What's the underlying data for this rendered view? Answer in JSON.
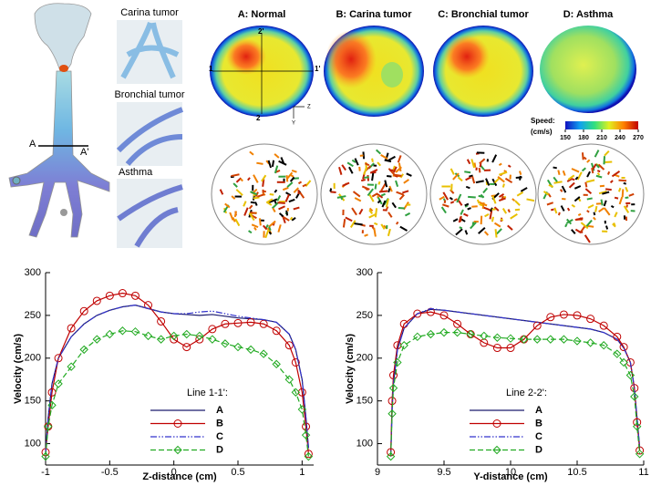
{
  "figure": {
    "panel_titles": [
      "A: Normal",
      "B: Carina tumor",
      "C: Bronchial tumor",
      "D: Asthma"
    ],
    "inset_labels": [
      "Carina tumor",
      "Bronchial tumor",
      "Asthma"
    ],
    "section_labels": [
      "A",
      "A'"
    ],
    "line_labels": [
      "1",
      "1'",
      "2",
      "2'"
    ],
    "axis_icon": [
      "Z",
      "Y"
    ],
    "colorbar": {
      "title": "Speed:",
      "unit": "(cm/s)",
      "lim": [
        150,
        270
      ],
      "ticks": [
        150,
        180,
        210,
        240,
        270
      ]
    }
  },
  "chart_data": [
    {
      "type": "line",
      "xlabel": "Z-distance (cm)",
      "ylabel": "Velocity (cm/s)",
      "legend_title": "Line 1-1':",
      "xlim": [
        -1,
        1.09
      ],
      "xticks": [
        -1,
        -0.5,
        0,
        0.5,
        1
      ],
      "ylim": [
        75,
        300
      ],
      "yticks": [
        100,
        150,
        200,
        250,
        300
      ],
      "x": [
        -1,
        -0.98,
        -0.95,
        -0.9,
        -0.8,
        -0.7,
        -0.6,
        -0.5,
        -0.4,
        -0.3,
        -0.2,
        -0.1,
        0,
        0.1,
        0.2,
        0.3,
        0.4,
        0.5,
        0.6,
        0.7,
        0.8,
        0.9,
        0.95,
        1.0,
        1.03,
        1.05
      ],
      "series": [
        {
          "name": "A",
          "color": "#1a1a6e",
          "line_style": "solid",
          "marker": "none",
          "values": [
            90,
            130,
            170,
            200,
            225,
            240,
            250,
            256,
            260,
            262,
            258,
            254,
            252,
            251,
            250,
            251,
            249,
            247,
            246,
            245,
            242,
            228,
            210,
            175,
            130,
            95
          ]
        },
        {
          "name": "B",
          "color": "#c00000",
          "line_style": "solid",
          "marker": "circle",
          "values": [
            90,
            120,
            160,
            200,
            235,
            255,
            267,
            273,
            276,
            273,
            262,
            243,
            222,
            213,
            222,
            234,
            240,
            241,
            242,
            240,
            232,
            215,
            195,
            160,
            120,
            88
          ]
        },
        {
          "name": "C",
          "color": "#3333cc",
          "line_style": "dashdotdot",
          "marker": "none",
          "values": [
            88,
            130,
            170,
            200,
            225,
            240,
            250,
            256,
            260,
            262,
            258,
            254,
            252,
            252,
            254,
            255,
            252,
            249,
            247,
            245,
            242,
            228,
            210,
            175,
            130,
            95
          ]
        },
        {
          "name": "D",
          "color": "#22aa22",
          "line_style": "dashed",
          "marker": "diamond",
          "values": [
            85,
            120,
            145,
            170,
            190,
            210,
            222,
            228,
            232,
            231,
            226,
            222,
            226,
            228,
            226,
            222,
            217,
            213,
            210,
            205,
            193,
            175,
            160,
            140,
            110,
            85
          ]
        }
      ]
    },
    {
      "type": "line",
      "xlabel": "Y-distance (cm)",
      "ylabel": "Velocity (cm/s)",
      "legend_title": "Line 2-2':",
      "xlim": [
        9,
        11
      ],
      "xticks": [
        9,
        9.5,
        10,
        10.5,
        11
      ],
      "ylim": [
        75,
        300
      ],
      "yticks": [
        100,
        150,
        200,
        250,
        300
      ],
      "x": [
        9.1,
        9.11,
        9.12,
        9.15,
        9.2,
        9.3,
        9.4,
        9.5,
        9.6,
        9.7,
        9.8,
        9.9,
        10.0,
        10.1,
        10.2,
        10.3,
        10.4,
        10.5,
        10.6,
        10.7,
        10.8,
        10.85,
        10.9,
        10.93,
        10.95,
        10.97
      ],
      "series": [
        {
          "name": "A",
          "color": "#1a1a6e",
          "line_style": "solid",
          "marker": "none",
          "values": [
            85,
            140,
            170,
            210,
            235,
            252,
            257,
            256,
            254,
            252,
            250,
            248,
            246,
            244,
            242,
            240,
            238,
            236,
            234,
            230,
            222,
            212,
            195,
            165,
            130,
            95
          ]
        },
        {
          "name": "B",
          "color": "#c00000",
          "line_style": "solid",
          "marker": "circle",
          "values": [
            90,
            150,
            180,
            215,
            240,
            252,
            254,
            250,
            240,
            228,
            218,
            212,
            212,
            222,
            238,
            248,
            251,
            250,
            246,
            238,
            225,
            213,
            195,
            165,
            125,
            92
          ]
        },
        {
          "name": "C",
          "color": "#3333cc",
          "line_style": "dashdotdot",
          "marker": "none",
          "values": [
            85,
            140,
            170,
            210,
            235,
            252,
            258,
            256,
            254,
            252,
            250,
            248,
            246,
            244,
            242,
            240,
            238,
            236,
            234,
            230,
            222,
            212,
            195,
            165,
            130,
            95
          ]
        },
        {
          "name": "D",
          "color": "#22aa22",
          "line_style": "dashed",
          "marker": "diamond",
          "values": [
            85,
            135,
            165,
            195,
            215,
            225,
            228,
            230,
            230,
            228,
            226,
            224,
            223,
            222,
            222,
            222,
            222,
            220,
            218,
            215,
            205,
            195,
            180,
            155,
            120,
            88
          ]
        }
      ]
    }
  ]
}
